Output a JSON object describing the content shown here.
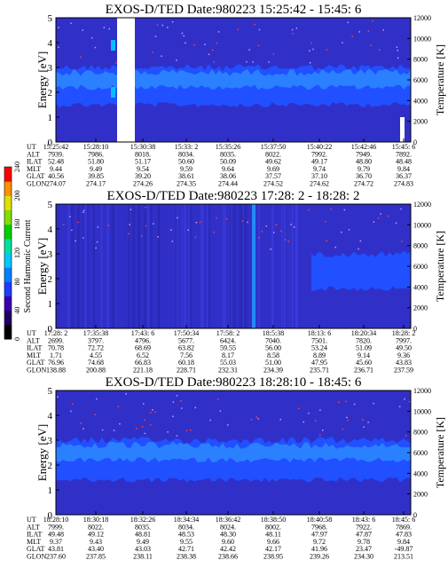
{
  "chart_data": [
    {
      "type": "heatmap",
      "title": "EXOS-D/TED   Date:980223  15:25:42 - 15:45: 6",
      "ylabel": "Energy [eV]",
      "y2label": "Temperature [K]",
      "ylim": [
        0,
        5
      ],
      "y2lim": [
        0,
        12000
      ],
      "yticks": [
        "0",
        "1",
        "2",
        "3",
        "4",
        "5"
      ],
      "y2ticks": [
        "0",
        "2000",
        "4000",
        "6000",
        "8000",
        "10000",
        "12000"
      ],
      "bands": [
        {
          "ylo": 1.5,
          "yhi": 3.0,
          "level": "mid"
        },
        {
          "ylo": 2.2,
          "yhi": 2.8,
          "level": "high"
        }
      ],
      "data_gap": "15:28-15:30",
      "row_labels": [
        "UT",
        "ALT",
        "ILAT",
        "MLT",
        "GLAT",
        "GLON"
      ],
      "columns": [
        [
          "15:25:42",
          "7939.",
          "52.48",
          "9.44",
          "40.56",
          "274.07"
        ],
        [
          "15:28:10",
          "7986.",
          "51.80",
          "9.49",
          "39.85",
          "274.17"
        ],
        [
          "15:30:38",
          "8018.",
          "51.17",
          "9.54",
          "39.20",
          "274.26"
        ],
        [
          "15:33: 2",
          "8034.",
          "50.60",
          "9.59",
          "38.61",
          "274.35"
        ],
        [
          "15:35:26",
          "8035.",
          "50.09",
          "9.64",
          "38.06",
          "274.44"
        ],
        [
          "15:37:50",
          "8022.",
          "49.62",
          "9.69",
          "37.57",
          "274.52"
        ],
        [
          "15:40:22",
          "7992.",
          "49.17",
          "9.74",
          "37.10",
          "274.62"
        ],
        [
          "15:42:46",
          "7949.",
          "48.80",
          "9.79",
          "36.70",
          "274.72"
        ],
        [
          "15:45: 6",
          "7892.",
          "48.48",
          "9.84",
          "36.37",
          "274.83"
        ]
      ]
    },
    {
      "type": "heatmap",
      "title": "EXOS-D/TED   Date:980223  17:28: 2 - 18:28: 2",
      "ylabel": "Energy [eV]",
      "y2label": "Temperature [K]",
      "ylim": [
        0,
        5
      ],
      "y2lim": [
        0,
        12000
      ],
      "yticks": [
        "0",
        "1",
        "2",
        "3",
        "4",
        "5"
      ],
      "y2ticks": [
        "0",
        "2000",
        "4000",
        "6000",
        "8000",
        "10000",
        "12000"
      ],
      "bands": [
        {
          "ylo": 1.6,
          "yhi": 3.0,
          "level": "mid",
          "from_frac": 0.72
        }
      ],
      "row_labels": [
        "UT",
        "ALT",
        "ILAT",
        "MLT",
        "GLAT",
        "GLON"
      ],
      "columns": [
        [
          "17:28: 2",
          "2699.",
          "70.78",
          "1.71",
          "76.96",
          "138.88"
        ],
        [
          "17:35:38",
          "3797.",
          "72.72",
          "4.55",
          "74.68",
          "200.88"
        ],
        [
          "17:43: 6",
          "4796.",
          "68.69",
          "6.52",
          "66.83",
          "221.18"
        ],
        [
          "17:50:34",
          "5677.",
          "63.82",
          "7.56",
          "60.18",
          "228.71"
        ],
        [
          "17:58: 2",
          "6424.",
          "59.55",
          "8.17",
          "55.03",
          "232.31"
        ],
        [
          "18:5:38",
          "7040.",
          "56.00",
          "8.58",
          "51.00",
          "234.39"
        ],
        [
          "18:13: 6",
          "7501.",
          "53.24",
          "8.89",
          "47.95",
          "235.71"
        ],
        [
          "18:20:34",
          "7820.",
          "51.09",
          "9.14",
          "45.60",
          "236.71"
        ],
        [
          "18:28: 2",
          "7997.",
          "49.50",
          "9.36",
          "43.83",
          "237.59"
        ]
      ]
    },
    {
      "type": "heatmap",
      "title": "EXOS-D/TED   Date:980223  18:28:10 - 18:45: 6",
      "ylabel": "Energy [eV]",
      "y2label": "Temperature [K]",
      "ylim": [
        0,
        5
      ],
      "y2lim": [
        0,
        12000
      ],
      "yticks": [
        "0",
        "1",
        "2",
        "3",
        "4",
        "5"
      ],
      "y2ticks": [
        "0",
        "2000",
        "4000",
        "6000",
        "8000",
        "10000",
        "12000"
      ],
      "bands": [
        {
          "ylo": 1.4,
          "yhi": 3.0,
          "level": "mid"
        },
        {
          "ylo": 2.2,
          "yhi": 2.8,
          "level": "high"
        }
      ],
      "row_labels": [
        "UT",
        "ALT",
        "ILAT",
        "MLT",
        "GLAT",
        "GLON"
      ],
      "columns": [
        [
          "18:28:10",
          "7999.",
          "49.48",
          "9.37",
          "43.81",
          "237.60"
        ],
        [
          "18:30:18",
          "8022.",
          "49.12",
          "9.43",
          "43.40",
          "237.85"
        ],
        [
          "18:32:26",
          "8035.",
          "48.81",
          "9.49",
          "43.03",
          "238.11"
        ],
        [
          "18:34:34",
          "8034.",
          "48.53",
          "9.55",
          "42.71",
          "238.38"
        ],
        [
          "18:36:42",
          "8024.",
          "48.30",
          "9.60",
          "42.42",
          "238.66"
        ],
        [
          "18:38:50",
          "8002.",
          "48.11",
          "9.66",
          "42.17",
          "238.95"
        ],
        [
          "18:40:58",
          "7968.",
          "47.97",
          "9.72",
          "41.96",
          "239.26"
        ],
        [
          "18:43: 6",
          "7922.",
          "47.87",
          "9.78",
          "23.47",
          "234.30"
        ],
        [
          "18:45: 6",
          "7869.",
          "47.83",
          "9.84",
          "-49.87",
          "213.51"
        ]
      ]
    }
  ],
  "colorbar": {
    "label": "Second Harmonic Current",
    "ticks": [
      "0",
      "40",
      "80",
      "120",
      "160",
      "200",
      "240"
    ],
    "colors": [
      "#000000",
      "#200060",
      "#3a00b0",
      "#1e3cff",
      "#0080ff",
      "#00c8ff",
      "#00e0a0",
      "#00d000",
      "#80e000",
      "#e0e000",
      "#ff9000",
      "#ff0000"
    ]
  },
  "colors": {
    "background": "#3030c8",
    "mid_band": "#2050ff",
    "high_band": "#2a80ff",
    "accent": "#ff4040"
  }
}
